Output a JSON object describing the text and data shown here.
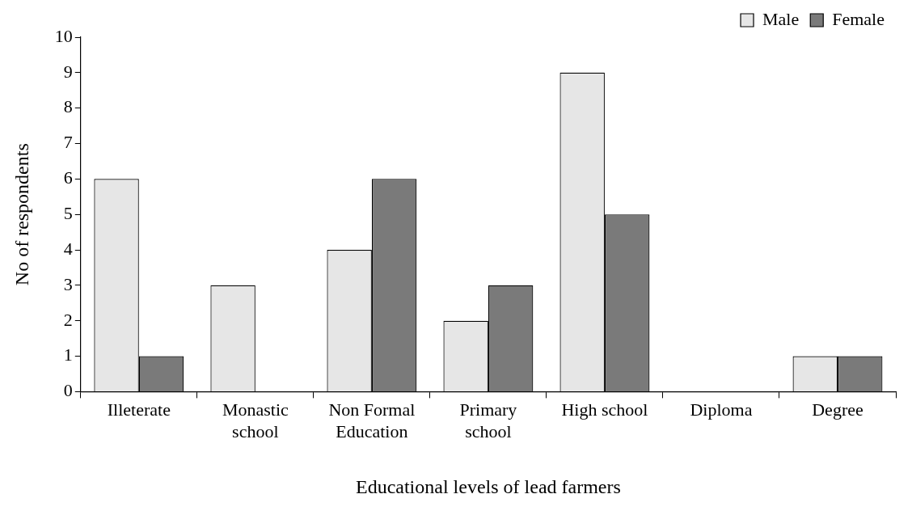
{
  "chart_data": {
    "type": "bar",
    "xlabel": "Educational levels of lead farmers",
    "ylabel": "No of respondents",
    "categories": [
      "Illeterate",
      "Monastic school",
      "Non Formal Education",
      "Primary school",
      "High school",
      "Diploma",
      "Degree"
    ],
    "series": [
      {
        "name": "Male",
        "color": "#e6e6e6",
        "values": [
          6,
          3,
          4,
          2,
          9,
          0,
          1
        ]
      },
      {
        "name": "Female",
        "color": "#7a7a7a",
        "values": [
          1,
          0,
          6,
          3,
          5,
          0,
          1
        ]
      }
    ],
    "ylim": [
      0,
      10
    ],
    "yticks": [
      0,
      1,
      2,
      3,
      4,
      5,
      6,
      7,
      8,
      9,
      10
    ],
    "grid": false,
    "legend": "top right"
  }
}
